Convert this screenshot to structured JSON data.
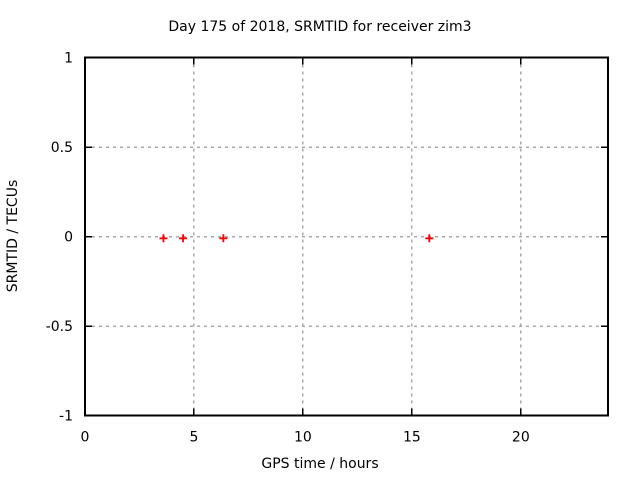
{
  "chart_data": {
    "type": "scatter",
    "title": "Day 175 of 2018, SRMTID for receiver zim3",
    "xlabel": "GPS time / hours",
    "ylabel": "SRMTID / TECUs",
    "xlim": [
      0,
      24
    ],
    "ylim": [
      -1,
      1
    ],
    "xticks": {
      "values": [
        0,
        5,
        10,
        15,
        20
      ],
      "labels": [
        "0",
        "5",
        "10",
        "15",
        "20"
      ]
    },
    "yticks": {
      "values": [
        1,
        0.5,
        0,
        -0.5,
        -1
      ],
      "labels": [
        "1",
        "0.5",
        "0",
        "-0.5",
        "-1"
      ]
    },
    "grid": {
      "x_at": [
        5,
        10,
        15,
        20
      ],
      "y_at": [
        0.5,
        0,
        -0.5
      ],
      "style": "dashed",
      "color": "#a8a8a8"
    },
    "legend": "none",
    "series": [
      {
        "name": "SRMTID",
        "marker": "plus",
        "color": "#ff0000",
        "points": [
          {
            "x": 3.6,
            "y": -0.01
          },
          {
            "x": 4.5,
            "y": -0.01
          },
          {
            "x": 6.35,
            "y": -0.01
          },
          {
            "x": 15.8,
            "y": -0.01
          }
        ]
      }
    ]
  },
  "colors": {
    "background": "#ffffff",
    "axis": "#000000",
    "text": "#000000",
    "grid": "#a8a8a8",
    "marker": "#ff0000"
  }
}
